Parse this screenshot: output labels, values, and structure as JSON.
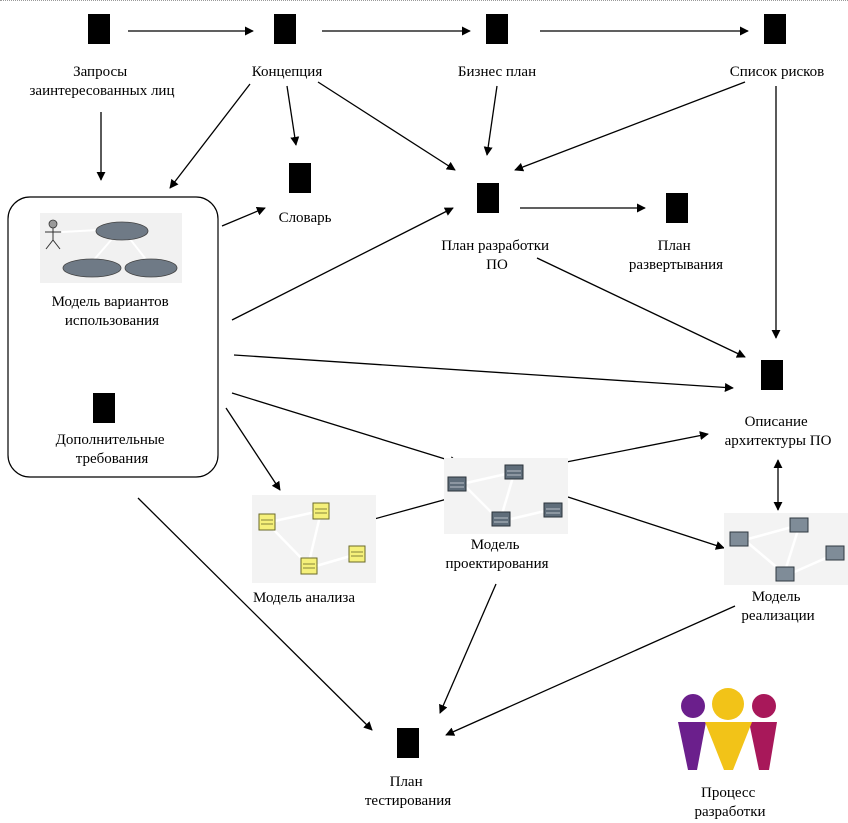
{
  "artifacts": {
    "stakeholder_requests": [
      "Запросы",
      "заинтересованных лиц"
    ],
    "vision": [
      "Концепция"
    ],
    "business_plan": [
      "Бизнес план"
    ],
    "risk_list": [
      "Список рисков"
    ],
    "glossary": [
      "Словарь"
    ],
    "development_plan": [
      "План разработки",
      "ПО"
    ],
    "deployment_plan": [
      "План",
      "развертывания"
    ],
    "use_case_model": [
      "Модель вариантов",
      "использования"
    ],
    "supplementary_requirements": [
      "Дополнительные",
      "требования"
    ],
    "architecture_description": [
      "Описание",
      "архитектуры ПО"
    ],
    "analysis_model": [
      "Модель анализа"
    ],
    "design_model": [
      "Модель",
      "проектирования"
    ],
    "implementation_model": [
      "Модель",
      "реализации"
    ],
    "test_plan": [
      "План",
      "тестирования"
    ],
    "development_process": [
      "Процесс",
      "разработки"
    ]
  },
  "icons": {
    "document": "document-icon",
    "use_case_diagram": "use-case-diagram-icon",
    "analysis_classes": "analysis-classes-icon",
    "design_classes": "design-classes-icon",
    "implementation_components": "implementation-components-icon",
    "process_logo": "process-people-logo"
  },
  "colors": {
    "document_fill": "#f4cfa3",
    "analysis_class_fill": "#f5f07a",
    "design_class_fill": "#5f6d7a",
    "implementation_fill": "#7f8c98",
    "logo_left": "#6b1f8c",
    "logo_center": "#f2c318",
    "logo_right": "#a8185a"
  }
}
